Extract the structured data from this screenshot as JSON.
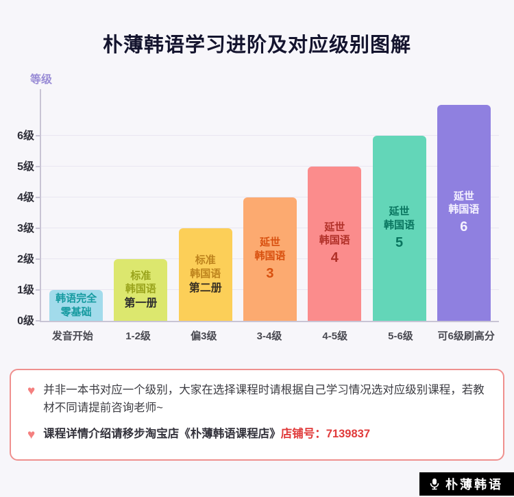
{
  "page": {
    "title": "朴薄韩语学习进阶及对应级别图解"
  },
  "chart_data": {
    "type": "bar",
    "title": "朴薄韩语学习进阶及对应级别图解",
    "ylabel": "等级",
    "xlabel": "",
    "ylim": [
      0,
      7.5
    ],
    "grid": true,
    "legend": false,
    "y_tick_labels": [
      "0级",
      "1级",
      "2级",
      "3级",
      "4级",
      "5级",
      "6级"
    ],
    "categories": [
      "发音开始",
      "1-2级",
      "偏3级",
      "3-4级",
      "4-5级",
      "5-6级",
      "可6级刷高分"
    ],
    "values": [
      1,
      2,
      3,
      4,
      5,
      6,
      7
    ],
    "bars": [
      {
        "x": "发音开始",
        "value": 1,
        "color": "#a2dbeb",
        "text_color": "#169aa0",
        "lines": [
          {
            "t": "韩语完全"
          },
          {
            "t": "零基础"
          }
        ]
      },
      {
        "x": "1-2级",
        "value": 2,
        "color": "#dce76e",
        "text_color": "#99a31c",
        "lines": [
          {
            "t": "标准"
          },
          {
            "t": "韩国语"
          },
          {
            "t": "第一册",
            "s": "emph",
            "c": "#2e2e2e"
          }
        ]
      },
      {
        "x": "偏3级",
        "value": 3,
        "color": "#fccf58",
        "text_color": "#bd831d",
        "lines": [
          {
            "t": "标准"
          },
          {
            "t": "韩国语"
          },
          {
            "t": "第二册",
            "s": "emph",
            "c": "#3a3124"
          }
        ]
      },
      {
        "x": "3-4级",
        "value": 4,
        "color": "#fcaa70",
        "text_color": "#d8500f",
        "lines": [
          {
            "t": "延世"
          },
          {
            "t": "韩国语"
          },
          {
            "t": "3",
            "s": "num"
          }
        ]
      },
      {
        "x": "4-5级",
        "value": 5,
        "color": "#fb8c8c",
        "text_color": "#b03028",
        "lines": [
          {
            "t": "延世"
          },
          {
            "t": "韩国语"
          },
          {
            "t": "4",
            "s": "num"
          }
        ]
      },
      {
        "x": "5-6级",
        "value": 6,
        "color": "#63d6b8",
        "text_color": "#09755f",
        "lines": [
          {
            "t": "延世"
          },
          {
            "t": "韩国语"
          },
          {
            "t": "5",
            "s": "num"
          }
        ]
      },
      {
        "x": "可6级刷高分",
        "value": 7,
        "color": "#8f80e0",
        "text_color": "#f5f2ff",
        "lines": [
          {
            "t": "延世"
          },
          {
            "t": "韩国语"
          },
          {
            "t": "6",
            "s": "num"
          }
        ]
      }
    ]
  },
  "notes": {
    "heart_glyph": "♥",
    "items": [
      {
        "segments": [
          {
            "text": "并非一本书对应一个级别，大家在选择课程时请根据自己学习情况选对应级别课程，若教材不同请提前咨询老师~",
            "style": "normal"
          }
        ]
      },
      {
        "segments": [
          {
            "text": "课程详情介绍请移步淘宝店《朴薄韩语课程店》",
            "style": "bold"
          },
          {
            "text": "店铺号：7139837",
            "style": "red-bold"
          }
        ]
      }
    ]
  },
  "brand": {
    "label": "朴薄韩语"
  }
}
